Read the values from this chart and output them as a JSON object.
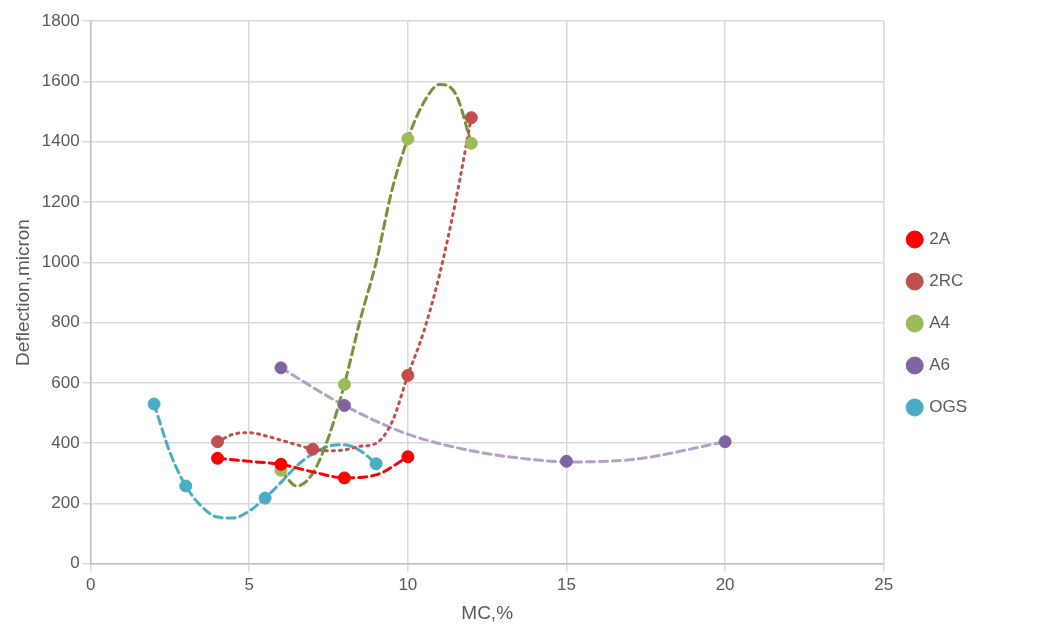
{
  "chart_data": {
    "type": "scatter",
    "xlabel": "MC,%",
    "ylabel": "Deflection,micron",
    "xlim": [
      0,
      25
    ],
    "xticks": [
      0,
      5,
      10,
      15,
      20,
      25
    ],
    "ylim": [
      0,
      1800
    ],
    "yticks": [
      0,
      200,
      400,
      600,
      800,
      1000,
      1200,
      1400,
      1600,
      1800
    ],
    "grid": true,
    "legend": "right",
    "marker": "circle",
    "series": [
      {
        "name": "2A",
        "color": "#ff0000",
        "x": [
          4,
          6,
          8,
          10
        ],
        "values": [
          350,
          330,
          285,
          355
        ]
      },
      {
        "name": "2RC",
        "color": "#c0504d",
        "x": [
          4,
          7,
          10,
          12
        ],
        "values": [
          405,
          380,
          625,
          1480
        ]
      },
      {
        "name": "A4",
        "color": "#9bbb59",
        "x": [
          6,
          8,
          10,
          12
        ],
        "values": [
          310,
          595,
          1410,
          1395
        ]
      },
      {
        "name": "A6",
        "color": "#8064a2",
        "x": [
          6,
          8,
          15,
          20
        ],
        "values": [
          650,
          525,
          340,
          405
        ]
      },
      {
        "name": "OGS",
        "color": "#4bacc6",
        "x": [
          2,
          3,
          5.5,
          9
        ],
        "values": [
          530,
          258,
          218,
          332
        ]
      },
      {
        "type": "line",
        "color": "#ff0000",
        "marker": "none",
        "line_style": "dashed",
        "x": [
          4,
          5,
          6,
          7,
          8,
          9,
          10
        ],
        "values": [
          350,
          340,
          330,
          305,
          285,
          295,
          355
        ]
      },
      {
        "type": "line",
        "color": "#c0504d",
        "marker": "none",
        "line_style": "dotted",
        "x": [
          4,
          4.5,
          5,
          5.5,
          6,
          6.5,
          7,
          7.5,
          8,
          8.5,
          9,
          9.5,
          10,
          10.5,
          11,
          11.5,
          12
        ],
        "values": [
          405,
          430,
          435,
          425,
          410,
          395,
          380,
          375,
          378,
          390,
          400,
          470,
          625,
          770,
          960,
          1200,
          1480
        ]
      },
      {
        "type": "line",
        "color": "#77933c",
        "marker": "none",
        "line_style": "dashed",
        "x": [
          6,
          6.5,
          7,
          7.5,
          8,
          8.5,
          9,
          9.5,
          10,
          10.5,
          11,
          11.5,
          12
        ],
        "values": [
          310,
          258,
          300,
          420,
          595,
          810,
          1000,
          1240,
          1410,
          1530,
          1590,
          1560,
          1395
        ]
      },
      {
        "type": "line",
        "color": "#b3a2c7",
        "marker": "none",
        "line_style": "dashed",
        "x": [
          6,
          8,
          10,
          12,
          14,
          15,
          17,
          20
        ],
        "values": [
          650,
          525,
          430,
          375,
          345,
          338,
          345,
          405
        ]
      },
      {
        "type": "line",
        "color": "#4bacc6",
        "marker": "none",
        "line_style": "dashed",
        "x": [
          2,
          2.5,
          3,
          3.5,
          4,
          4.5,
          5,
          5.5,
          6,
          6.5,
          7,
          7.5,
          8,
          8.5,
          9
        ],
        "values": [
          530,
          370,
          258,
          190,
          155,
          152,
          175,
          218,
          270,
          325,
          365,
          390,
          395,
          375,
          332
        ]
      }
    ]
  }
}
